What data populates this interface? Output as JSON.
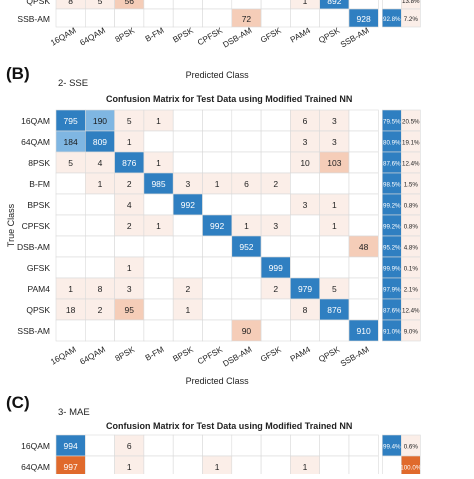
{
  "chart_data": [
    {
      "type": "heatmap",
      "panel": "top-partial",
      "rows_visible": [
        "QPSK",
        "SSB-AM"
      ],
      "top_row_label_partial": "QPSK",
      "categories": [
        "16QAM",
        "64QAM",
        "8PSK",
        "B-FM",
        "BPSK",
        "CPFSK",
        "DSB-AM",
        "GFSK",
        "PAM4",
        "QPSK",
        "SSB-AM"
      ],
      "values_visible": [
        [
          "8",
          "5",
          "56",
          "",
          "",
          "",
          "",
          "",
          "1",
          "892",
          ""
        ],
        [
          "",
          "",
          "",
          "",
          "",
          "",
          "72",
          "",
          "",
          "",
          "928"
        ]
      ],
      "row_summary": [
        [
          "",
          "13.8%"
        ],
        [
          "92.8%",
          "7.2%"
        ]
      ],
      "xlabel": "Predicted Class"
    },
    {
      "type": "heatmap",
      "panel_label": "(B)",
      "subtitle": "2-  SSE",
      "title": "Confusion Matrix for Test Data using Modified Trained NN",
      "ylabel": "True Class",
      "xlabel": "Predicted Class",
      "categories": [
        "16QAM",
        "64QAM",
        "8PSK",
        "B-FM",
        "BPSK",
        "CPFSK",
        "DSB-AM",
        "GFSK",
        "PAM4",
        "QPSK",
        "SSB-AM"
      ],
      "values": [
        [
          795,
          190,
          5,
          1,
          null,
          null,
          null,
          null,
          6,
          3,
          null
        ],
        [
          184,
          809,
          1,
          null,
          null,
          null,
          null,
          null,
          3,
          3,
          null
        ],
        [
          5,
          4,
          876,
          1,
          null,
          null,
          null,
          null,
          10,
          103,
          null
        ],
        [
          null,
          1,
          2,
          985,
          3,
          1,
          6,
          2,
          null,
          null,
          null
        ],
        [
          null,
          null,
          4,
          null,
          992,
          null,
          null,
          null,
          3,
          1,
          null
        ],
        [
          null,
          null,
          2,
          1,
          null,
          992,
          1,
          3,
          null,
          1,
          null
        ],
        [
          null,
          null,
          null,
          null,
          null,
          null,
          952,
          null,
          null,
          null,
          48
        ],
        [
          null,
          null,
          1,
          null,
          null,
          null,
          null,
          999,
          null,
          null,
          null
        ],
        [
          1,
          8,
          3,
          null,
          2,
          null,
          null,
          2,
          979,
          5,
          null
        ],
        [
          18,
          2,
          95,
          null,
          1,
          null,
          null,
          null,
          8,
          876,
          null
        ],
        [
          null,
          null,
          null,
          null,
          null,
          null,
          90,
          null,
          null,
          null,
          910
        ]
      ],
      "row_summary": [
        [
          "79.5%",
          "20.5%"
        ],
        [
          "80.9%",
          "19.1%"
        ],
        [
          "87.6%",
          "12.4%"
        ],
        [
          "98.5%",
          "1.5%"
        ],
        [
          "99.2%",
          "0.8%"
        ],
        [
          "99.2%",
          "0.8%"
        ],
        [
          "95.2%",
          "4.8%"
        ],
        [
          "99.9%",
          "0.1%"
        ],
        [
          "97.9%",
          "2.1%"
        ],
        [
          "87.6%",
          "12.4%"
        ],
        [
          "91.0%",
          "9.0%"
        ]
      ]
    },
    {
      "type": "heatmap",
      "panel_label": "(C)",
      "subtitle": "3-  MAE",
      "title": "Confusion Matrix for Test Data using Modified Trained NN",
      "categories": [
        "16QAM",
        "64QAM",
        "8PSK",
        "B-FM",
        "BPSK",
        "CPFSK",
        "DSB-AM",
        "GFSK",
        "PAM4",
        "QPSK",
        "SSB-AM"
      ],
      "values_visible": [
        [
          994,
          null,
          6,
          null,
          null,
          null,
          null,
          null,
          null,
          null,
          null
        ],
        [
          997,
          null,
          1,
          null,
          null,
          1,
          null,
          null,
          1,
          null,
          null
        ]
      ],
      "row_summary": [
        [
          "99.4%",
          "0.6%"
        ],
        [
          "",
          "100.0%"
        ]
      ]
    }
  ],
  "colors": {
    "diag_blue": "#2f7fc1",
    "light_blue": "#7fb6e2",
    "orange_strong": "#e06a2c",
    "offdiag_light": "#fbeee8",
    "offdiag_mid": "#f5cdb8",
    "grid": "#d9d9d9"
  }
}
